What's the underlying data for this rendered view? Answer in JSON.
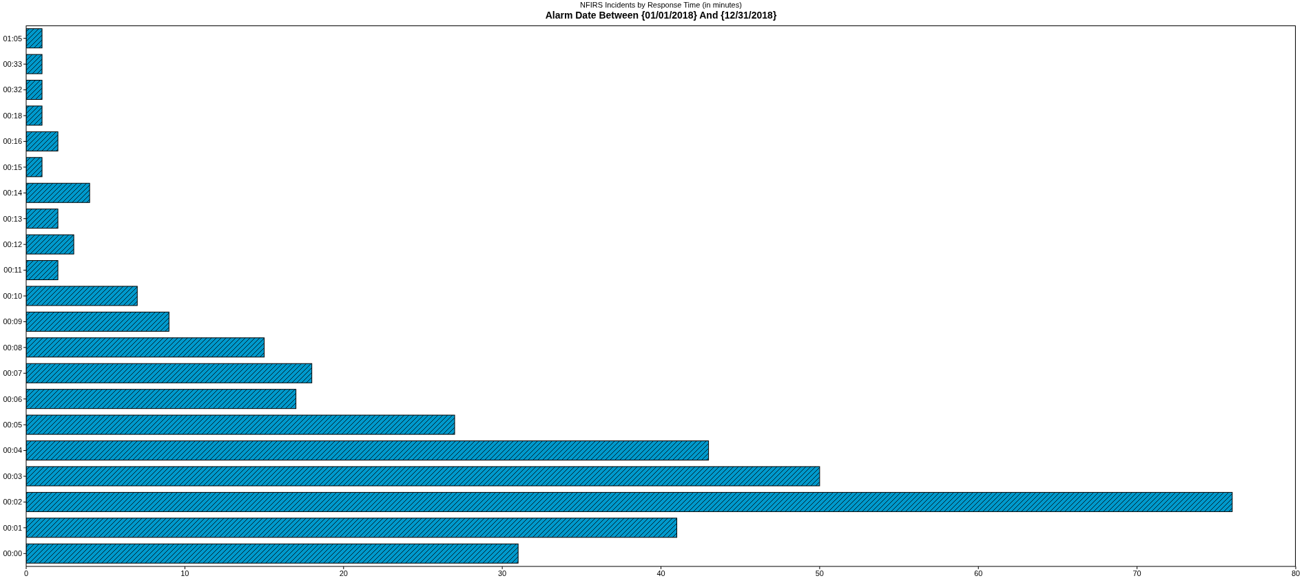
{
  "chart_data": {
    "type": "bar",
    "orientation": "horizontal",
    "title": "NFIRS Incidents by Response Time (in minutes)",
    "subtitle": "Alarm Date Between {01/01/2018} And {12/31/2018}",
    "categories": [
      "01:05",
      "00:33",
      "00:32",
      "00:18",
      "00:16",
      "00:15",
      "00:14",
      "00:13",
      "00:12",
      "00:11",
      "00:10",
      "00:09",
      "00:08",
      "00:07",
      "00:06",
      "00:05",
      "00:04",
      "00:03",
      "00:02",
      "00:01",
      "00:00"
    ],
    "values": [
      1,
      1,
      1,
      1,
      2,
      1,
      4,
      2,
      3,
      2,
      7,
      9,
      15,
      18,
      17,
      27,
      43,
      50,
      76,
      41,
      31
    ],
    "color": "#0099cc",
    "xlim": [
      0,
      80
    ],
    "xticks": [
      0,
      10,
      20,
      30,
      40,
      50,
      60,
      70,
      80
    ]
  }
}
